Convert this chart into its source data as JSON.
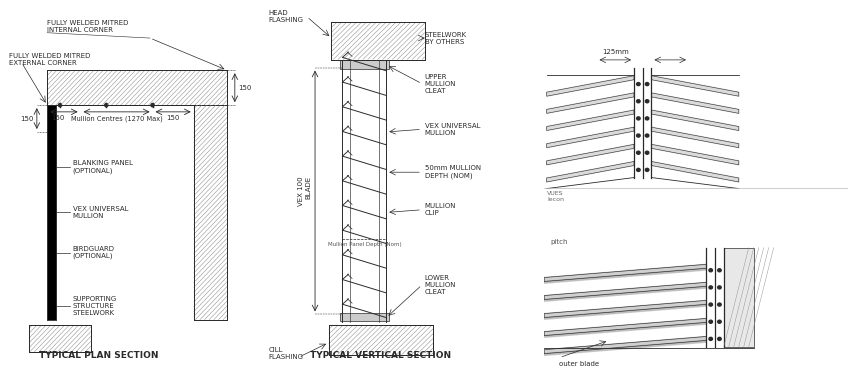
{
  "bg": "white",
  "lc": "#2a2a2a",
  "hc": "#888888",
  "title1": "TYPICAL PLAN SECTION",
  "title2": "TYPICAL VERTICAL SECTION",
  "plan_labels": {
    "internal_corner": "FULLY WELDED MITRED\nINTERNAL CORNER",
    "external_corner": "FULLY WELDED MITRED\nEXTERNAL CORNER",
    "mullion_centres": "Mullion Centres (1270 Max)",
    "blanking_panel": "BLANKING PANEL\n(OPTIONAL)",
    "vex_mullion": "VEX UNIVERSAL\nMULLION",
    "birdguard": "BIRDGUARD\n(OPTIONAL)",
    "supporting": "SUPPORTING\nSTRUCTURE\nSTEELWORK",
    "dim150": "150"
  },
  "vert_labels": {
    "head_flashing": "HEAD\nFLASHING",
    "steelwork": "STEELWORK\nBY OTHERS",
    "upper_cleat": "UPPER\nMULLION\nCLEAT",
    "vex_mullion": "VEX UNIVERSAL\nMULLION",
    "vex_blade": "VEX 100\nBLADE",
    "mullion_depth": "50mm MULLION\nDEPTH (NOM)",
    "mullion_clip": "MULLION\nCLIP",
    "lower_cleat": "LOWER\nMULLION\nCLEAT",
    "cill": "CILL\nFLASHING",
    "panel_depth": "Mullion Panel Depth (Nom)"
  },
  "iso_labels": {
    "dim": "125mm",
    "outer_blade": "outer blade",
    "pitch": "pitch",
    "vues_lecon": "VUES\nlecon"
  }
}
